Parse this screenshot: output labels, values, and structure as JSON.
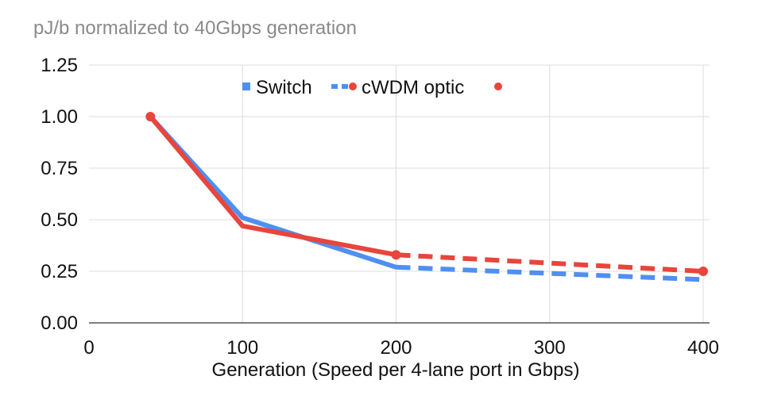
{
  "chart_data": {
    "type": "line",
    "title": "pJ/b normalized to 40Gbps generation",
    "xlabel": "Generation (Speed per 4-lane port in Gbps)",
    "ylabel": "",
    "xlim": [
      0,
      400
    ],
    "ylim": [
      0,
      1.25
    ],
    "x_ticks": [
      0,
      100,
      200,
      300,
      400
    ],
    "y_ticks": [
      "0.00",
      "0.25",
      "0.50",
      "0.75",
      "1.00",
      "1.25"
    ],
    "grid": true,
    "legend_position": "top",
    "series": [
      {
        "name": "Switch",
        "color": "#4f8ff0",
        "marker": "none",
        "points": [
          {
            "x": 40,
            "y": 1.0
          },
          {
            "x": 100,
            "y": 0.51
          },
          {
            "x": 200,
            "y": 0.27
          },
          {
            "x": 400,
            "y": 0.21
          }
        ],
        "projected_from_x": 200
      },
      {
        "name": "cWDM optic",
        "color": "#e8453c",
        "marker": "circle",
        "points": [
          {
            "x": 40,
            "y": 1.0
          },
          {
            "x": 100,
            "y": 0.47
          },
          {
            "x": 200,
            "y": 0.33
          },
          {
            "x": 400,
            "y": 0.25
          }
        ],
        "projected_from_x": 200
      }
    ]
  }
}
